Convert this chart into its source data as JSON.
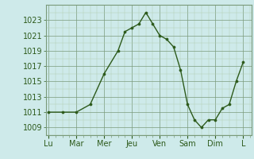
{
  "x_labels": [
    "Lu",
    "Mar",
    "Mer",
    "Jeu",
    "Ven",
    "Sam",
    "Dim",
    "L"
  ],
  "data_x": [
    0,
    0.5,
    1.0,
    1.5,
    2.0,
    2.5,
    2.75,
    3.0,
    3.25,
    3.5,
    3.75,
    4.0,
    4.25,
    4.5,
    4.75,
    5.0,
    5.25,
    5.5,
    5.75,
    6.0,
    6.25,
    6.5,
    6.75,
    7.0
  ],
  "data_y": [
    1011,
    1011,
    1011,
    1012,
    1016,
    1019,
    1021.5,
    1022,
    1022.5,
    1024,
    1022.5,
    1021,
    1020.5,
    1019.5,
    1016.5,
    1012,
    1010,
    1009,
    1010,
    1010,
    1011.5,
    1012,
    1015,
    1017.5
  ],
  "ylim": [
    1008,
    1025
  ],
  "yticks": [
    1009,
    1011,
    1013,
    1015,
    1017,
    1019,
    1021,
    1023
  ],
  "xlim": [
    -0.1,
    7.3
  ],
  "line_color": "#2d5a1b",
  "marker_color": "#2d5a1b",
  "bg_color": "#ceeaea",
  "grid_major_color": "#7a9a7a",
  "grid_minor_color": "#b0ccb0",
  "font_size_tick": 7,
  "font_color": "#2d5a1b",
  "linewidth": 1.0,
  "markersize": 2.2
}
